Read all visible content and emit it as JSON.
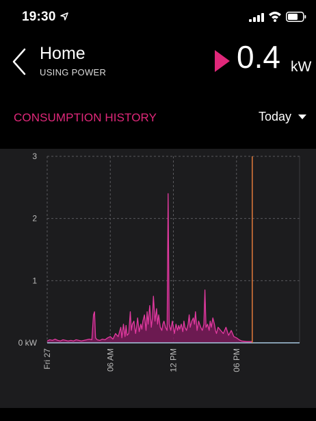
{
  "status_bar": {
    "time": "19:30"
  },
  "header": {
    "title": "Home",
    "subtitle": "USING POWER",
    "power_value": "0.4",
    "power_unit": "kW"
  },
  "section": {
    "title": "CONSUMPTION HISTORY",
    "range_label": "Today"
  },
  "colors": {
    "accent": "#e0287a",
    "line": "#e23aa0",
    "fill": "#7a1a5a",
    "baseline": "#a8c8e0",
    "now_marker": "#e27a3a"
  },
  "chart_data": {
    "type": "area",
    "y_ticks": [
      "0 kW",
      "1",
      "2",
      "3"
    ],
    "ylim": [
      0,
      3
    ],
    "x_ticks": [
      "Fri 27",
      "06 AM",
      "12 PM",
      "06 PM"
    ],
    "x_tick_hours": [
      0,
      6,
      12,
      18
    ],
    "xlim_hours": [
      0,
      24
    ],
    "now_hour": 19.5,
    "series": [
      {
        "x": [
          0,
          0.25,
          0.5,
          0.75,
          1,
          1.25,
          1.5,
          1.75,
          2,
          2.25,
          2.5,
          2.75,
          3,
          3.25,
          3.5,
          3.75,
          4,
          4.25,
          4.4,
          4.5,
          4.6,
          4.75,
          5,
          5.25,
          5.5,
          5.75,
          6,
          6.25,
          6.5,
          6.75,
          7,
          7.1,
          7.25,
          7.4,
          7.5,
          7.6,
          7.75,
          7.9,
          8,
          8.1,
          8.25,
          8.4,
          8.5,
          8.6,
          8.75,
          8.9,
          9,
          9.1,
          9.25,
          9.4,
          9.5,
          9.6,
          9.75,
          9.9,
          10,
          10.1,
          10.25,
          10.4,
          10.5,
          10.6,
          10.75,
          10.9,
          11,
          11.1,
          11.25,
          11.4,
          11.5,
          11.6,
          11.75,
          11.9,
          12,
          12.1,
          12.25,
          12.4,
          12.5,
          12.6,
          12.75,
          12.9,
          13,
          13.1,
          13.25,
          13.4,
          13.5,
          13.6,
          13.75,
          13.9,
          14,
          14.1,
          14.25,
          14.4,
          14.5,
          14.6,
          14.75,
          14.9,
          15,
          15.1,
          15.25,
          15.4,
          15.5,
          15.6,
          15.75,
          15.9,
          16,
          16.1,
          16.25,
          16.5,
          16.75,
          17,
          17.25,
          17.5,
          17.75,
          18,
          18.25,
          18.5,
          19,
          19.5
        ],
        "values": [
          0.03,
          0.05,
          0.04,
          0.06,
          0.04,
          0.03,
          0.05,
          0.04,
          0.03,
          0.04,
          0.03,
          0.05,
          0.04,
          0.03,
          0.04,
          0.05,
          0.06,
          0.05,
          0.45,
          0.5,
          0.08,
          0.05,
          0.04,
          0.06,
          0.05,
          0.08,
          0.1,
          0.06,
          0.15,
          0.1,
          0.25,
          0.08,
          0.3,
          0.1,
          0.28,
          0.12,
          0.15,
          0.5,
          0.2,
          0.3,
          0.35,
          0.15,
          0.25,
          0.4,
          0.18,
          0.3,
          0.22,
          0.35,
          0.45,
          0.2,
          0.5,
          0.3,
          0.6,
          0.25,
          0.4,
          0.75,
          0.35,
          0.55,
          0.3,
          0.45,
          0.25,
          0.2,
          0.3,
          0.35,
          0.25,
          0.2,
          2.4,
          0.3,
          0.2,
          0.35,
          0.25,
          0.15,
          0.3,
          0.2,
          0.28,
          0.22,
          0.3,
          0.18,
          0.35,
          0.25,
          0.2,
          0.3,
          0.45,
          0.25,
          0.35,
          0.4,
          0.3,
          0.5,
          0.2,
          0.35,
          0.3,
          0.25,
          0.2,
          0.3,
          0.85,
          0.25,
          0.3,
          0.2,
          0.35,
          0.25,
          0.4,
          0.3,
          0.2,
          0.15,
          0.25,
          0.2,
          0.15,
          0.25,
          0.12,
          0.2,
          0.1,
          0.08,
          0.05,
          0.03,
          0.02,
          0.02
        ]
      }
    ]
  }
}
